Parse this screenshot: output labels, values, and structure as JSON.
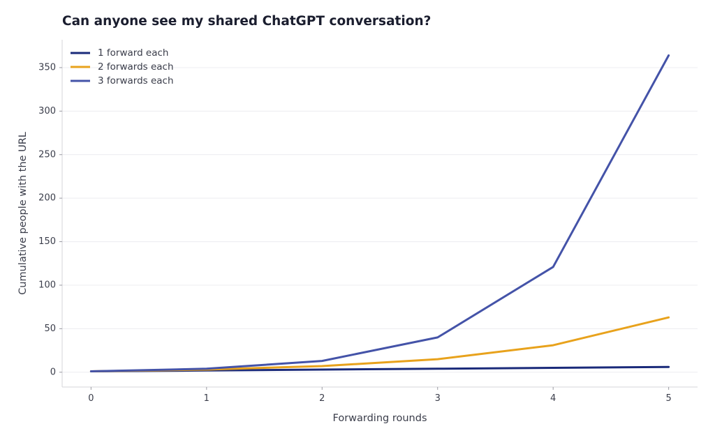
{
  "chart_data": {
    "type": "line",
    "title": "Can anyone see my shared ChatGPT conversation?",
    "xlabel": "Forwarding rounds",
    "ylabel": "Cumulative people with the URL",
    "x": [
      0,
      1,
      2,
      3,
      4,
      5
    ],
    "xlim": [
      -0.25,
      5.25
    ],
    "ylim": [
      -17,
      382
    ],
    "xticks": [
      0,
      1,
      2,
      3,
      4,
      5
    ],
    "yticks": [
      0,
      50,
      100,
      150,
      200,
      250,
      300,
      350
    ],
    "grid": "horizontal",
    "legend_position": "top-left",
    "series": [
      {
        "name": "1 forward each",
        "color": "#1a2a7a",
        "values": [
          1,
          2,
          3,
          4,
          5,
          6
        ]
      },
      {
        "name": "2 forwards each",
        "color": "#e8a21c",
        "values": [
          1,
          3,
          7,
          15,
          31,
          63
        ]
      },
      {
        "name": "3 forwards each",
        "color": "#4453a8",
        "values": [
          1,
          4,
          13,
          40,
          121,
          364
        ]
      }
    ]
  }
}
